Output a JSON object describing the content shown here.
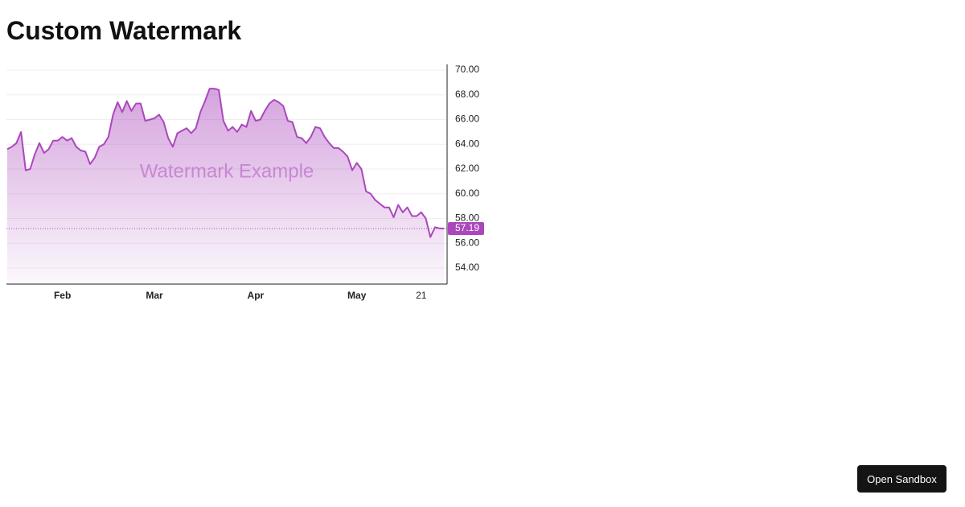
{
  "page": {
    "title": "Custom Watermark",
    "button": "Open Sandbox"
  },
  "chart_data": {
    "type": "area",
    "watermark": "Watermark Example",
    "categories": [
      null,
      null,
      null,
      null,
      null,
      null,
      null,
      null,
      null,
      null,
      null,
      null,
      "Feb",
      null,
      null,
      null,
      null,
      null,
      null,
      null,
      null,
      null,
      null,
      null,
      null,
      null,
      null,
      null,
      null,
      null,
      null,
      null,
      "Mar",
      null,
      null,
      null,
      null,
      null,
      null,
      null,
      null,
      null,
      null,
      null,
      null,
      null,
      null,
      null,
      null,
      null,
      null,
      null,
      null,
      null,
      "Apr",
      null,
      null,
      null,
      null,
      null,
      null,
      null,
      null,
      null,
      null,
      null,
      null,
      null,
      null,
      null,
      null,
      null,
      null,
      null,
      null,
      null,
      "May",
      null,
      null,
      null,
      null,
      null,
      null,
      null,
      null,
      null,
      null,
      null,
      null,
      null,
      "21",
      null,
      null,
      null,
      null,
      null
    ],
    "series": [
      {
        "color": "#ab47bc",
        "values": [
          63.6,
          63.8,
          64.1,
          65.0,
          61.9,
          62.0,
          63.2,
          64.1,
          63.3,
          63.6,
          64.3,
          64.3,
          64.6,
          64.3,
          64.5,
          63.8,
          63.5,
          63.4,
          62.4,
          62.9,
          63.8,
          64.0,
          64.6,
          66.4,
          67.4,
          66.6,
          67.5,
          66.7,
          67.3,
          67.3,
          65.9,
          66.0,
          66.1,
          66.4,
          65.8,
          64.5,
          63.8,
          64.9,
          65.1,
          65.3,
          64.9,
          65.3,
          66.6,
          67.5,
          68.5,
          68.5,
          68.4,
          65.9,
          65.1,
          65.4,
          65.0,
          65.6,
          65.4,
          66.7,
          65.9,
          66.0,
          66.7,
          67.3,
          67.6,
          67.4,
          67.1,
          65.9,
          65.8,
          64.6,
          64.5,
          64.1,
          64.6,
          65.4,
          65.3,
          64.6,
          64.1,
          63.7,
          63.7,
          63.4,
          63.0,
          61.9,
          62.5,
          62.0,
          60.2,
          60.0,
          59.5,
          59.2,
          58.9,
          58.9,
          58.1,
          59.1,
          58.5,
          58.9,
          58.2,
          58.2,
          58.5,
          58.0,
          56.5,
          57.3,
          57.2,
          57.19
        ]
      }
    ],
    "ylim": [
      52.7,
      70.46
    ],
    "yticks": [
      {
        "value": 54,
        "label": "54.00"
      },
      {
        "value": 56,
        "label": "56.00"
      },
      {
        "value": 58,
        "label": "58.00"
      },
      {
        "value": 60,
        "label": "60.00"
      },
      {
        "value": 62,
        "label": "62.00"
      },
      {
        "value": 64,
        "label": "64.00"
      },
      {
        "value": 66,
        "label": "66.00"
      },
      {
        "value": 68,
        "label": "68.00"
      },
      {
        "value": 70,
        "label": "70.00"
      }
    ],
    "grid": true
  }
}
